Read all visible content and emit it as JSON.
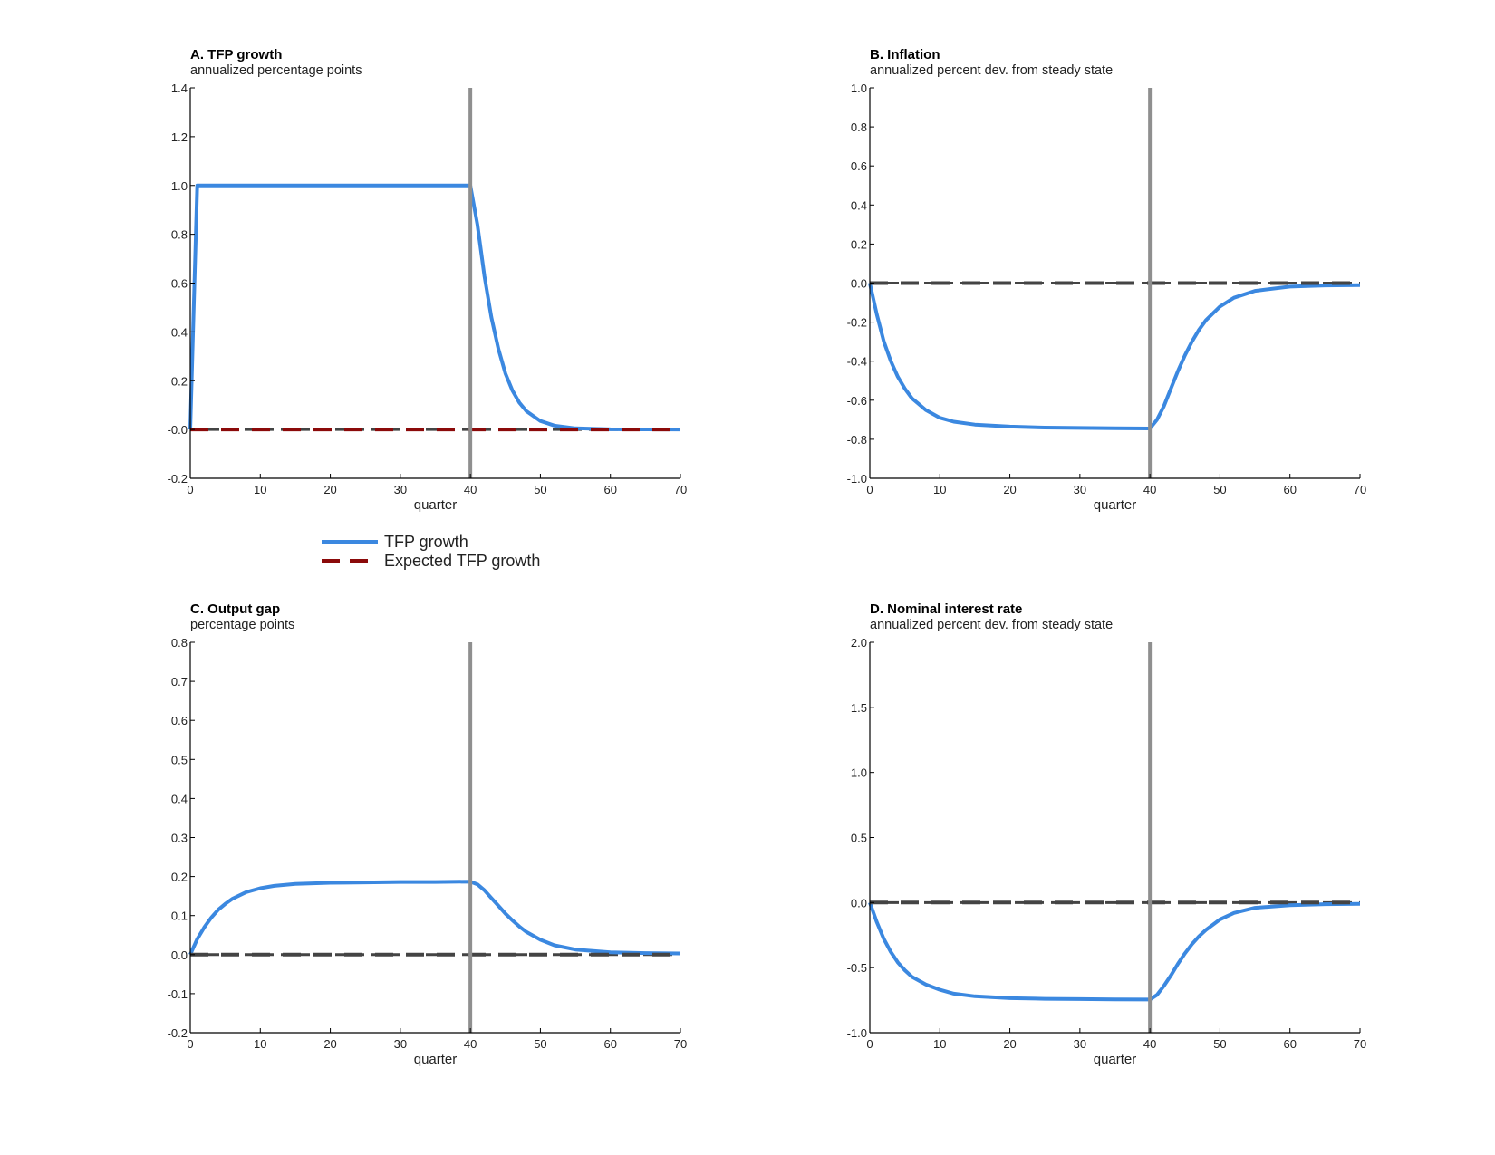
{
  "legend": {
    "entries": [
      {
        "label": "TFP growth",
        "color": "#3b88e0",
        "style": "solid"
      },
      {
        "label": "Expected TFP growth",
        "color": "#8b0a0a",
        "style": "dashed"
      }
    ]
  },
  "chart_data": [
    {
      "type": "line",
      "title": "A. TFP growth",
      "subtitle": "annualized percentage points",
      "xlabel": "quarter",
      "xlim": [
        0,
        70
      ],
      "ylim": [
        -0.2,
        1.4
      ],
      "xticks": [
        "0",
        "10",
        "20",
        "30",
        "40",
        "50",
        "60",
        "70"
      ],
      "yticks": [
        "-0.2",
        "-0.0",
        "0.2",
        "0.4",
        "0.6",
        "0.8",
        "1.0",
        "1.2",
        "1.4"
      ],
      "vline": 40,
      "zero_line": true,
      "grid": false,
      "series": [
        {
          "name": "TFP growth",
          "color": "#3b88e0",
          "style": "solid",
          "x": [
            0,
            1,
            40,
            41,
            42,
            43,
            44,
            45,
            46,
            47,
            48,
            50,
            52,
            55,
            60,
            70
          ],
          "y": [
            0,
            1.0,
            1.0,
            0.84,
            0.63,
            0.46,
            0.33,
            0.23,
            0.16,
            0.11,
            0.075,
            0.035,
            0.016,
            0.005,
            0.001,
            0.0
          ]
        },
        {
          "name": "Expected TFP growth",
          "color": "#8b0a0a",
          "style": "dashed",
          "x": [
            0,
            70
          ],
          "y": [
            0,
            0
          ]
        }
      ]
    },
    {
      "type": "line",
      "title": "B. Inflation",
      "subtitle": "annualized percent dev. from steady state",
      "xlabel": "quarter",
      "xlim": [
        0,
        70
      ],
      "ylim": [
        -1.0,
        1.0
      ],
      "xticks": [
        "0",
        "10",
        "20",
        "30",
        "40",
        "50",
        "60",
        "70"
      ],
      "yticks": [
        "-1.0",
        "-0.8",
        "-0.6",
        "-0.4",
        "-0.2",
        "0.0",
        "0.2",
        "0.4",
        "0.6",
        "0.8",
        "1.0"
      ],
      "vline": 40,
      "zero_line": true,
      "grid": false,
      "series": [
        {
          "color": "#3b88e0",
          "style": "solid",
          "x": [
            0,
            1,
            2,
            3,
            4,
            5,
            6,
            8,
            10,
            12,
            15,
            20,
            25,
            30,
            35,
            40,
            41,
            42,
            43,
            44,
            45,
            46,
            47,
            48,
            50,
            52,
            55,
            60,
            65,
            70
          ],
          "y": [
            0,
            -0.16,
            -0.3,
            -0.4,
            -0.48,
            -0.54,
            -0.59,
            -0.65,
            -0.69,
            -0.71,
            -0.725,
            -0.735,
            -0.74,
            -0.742,
            -0.744,
            -0.745,
            -0.7,
            -0.63,
            -0.54,
            -0.45,
            -0.37,
            -0.3,
            -0.24,
            -0.19,
            -0.12,
            -0.075,
            -0.04,
            -0.018,
            -0.012,
            -0.01
          ]
        },
        {
          "color": "#444444",
          "style": "dashed",
          "x": [
            0,
            70
          ],
          "y": [
            0,
            0
          ]
        }
      ]
    },
    {
      "type": "line",
      "title": "C. Output gap",
      "subtitle": "percentage points",
      "xlabel": "quarter",
      "xlim": [
        0,
        70
      ],
      "ylim": [
        -0.2,
        0.8
      ],
      "xticks": [
        "0",
        "10",
        "20",
        "30",
        "40",
        "50",
        "60",
        "70"
      ],
      "yticks": [
        "-0.2",
        "-0.1",
        "0.0",
        "0.1",
        "0.2",
        "0.3",
        "0.4",
        "0.5",
        "0.6",
        "0.7",
        "0.8"
      ],
      "vline": 40,
      "zero_line": true,
      "grid": false,
      "series": [
        {
          "color": "#3b88e0",
          "style": "solid",
          "x": [
            0,
            1,
            2,
            3,
            4,
            5,
            6,
            8,
            10,
            12,
            15,
            20,
            25,
            30,
            35,
            40,
            41,
            42,
            43,
            44,
            45,
            46,
            47,
            48,
            50,
            52,
            55,
            60,
            65,
            70
          ],
          "y": [
            0,
            0.04,
            0.07,
            0.095,
            0.115,
            0.13,
            0.143,
            0.16,
            0.17,
            0.176,
            0.181,
            0.184,
            0.185,
            0.186,
            0.186,
            0.187,
            0.18,
            0.165,
            0.145,
            0.125,
            0.105,
            0.088,
            0.072,
            0.058,
            0.038,
            0.024,
            0.013,
            0.006,
            0.004,
            0.003
          ]
        },
        {
          "color": "#444444",
          "style": "dashed",
          "x": [
            0,
            70
          ],
          "y": [
            0,
            0
          ]
        }
      ]
    },
    {
      "type": "line",
      "title": "D. Nominal interest rate",
      "subtitle": "annualized percent dev. from steady state",
      "xlabel": "quarter",
      "xlim": [
        0,
        70
      ],
      "ylim": [
        -1.0,
        2.0
      ],
      "xticks": [
        "0",
        "10",
        "20",
        "30",
        "40",
        "50",
        "60",
        "70"
      ],
      "yticks": [
        "-1.0",
        "-0.5",
        "0.0",
        "0.5",
        "1.0",
        "1.5",
        "2.0"
      ],
      "vline": 40,
      "zero_line": true,
      "grid": false,
      "series": [
        {
          "color": "#3b88e0",
          "style": "solid",
          "x": [
            0,
            1,
            2,
            3,
            4,
            5,
            6,
            8,
            10,
            12,
            15,
            20,
            25,
            30,
            35,
            40,
            41,
            42,
            43,
            44,
            45,
            46,
            47,
            48,
            50,
            52,
            55,
            60,
            65,
            70
          ],
          "y": [
            0,
            -0.15,
            -0.28,
            -0.38,
            -0.46,
            -0.52,
            -0.57,
            -0.63,
            -0.67,
            -0.7,
            -0.72,
            -0.735,
            -0.74,
            -0.742,
            -0.744,
            -0.745,
            -0.71,
            -0.64,
            -0.56,
            -0.47,
            -0.39,
            -0.32,
            -0.26,
            -0.21,
            -0.13,
            -0.08,
            -0.04,
            -0.02,
            -0.012,
            -0.01
          ]
        },
        {
          "color": "#444444",
          "style": "dashed",
          "x": [
            0,
            70
          ],
          "y": [
            0,
            0
          ]
        }
      ]
    }
  ]
}
